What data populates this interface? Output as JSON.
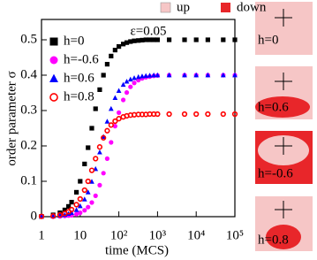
{
  "chart_data": {
    "type": "scatter",
    "xlabel": "time (MCS)",
    "ylabel": "order parameter σ",
    "annotation": "ε=0.05",
    "log_x": true,
    "xlim": [
      1,
      100000
    ],
    "ylim": [
      0,
      0.55
    ],
    "xticks": [
      1,
      10,
      {
        "value": 100,
        "label": "10²"
      },
      {
        "value": 1000,
        "label": "10³"
      },
      {
        "value": 10000,
        "label": "10⁴"
      },
      {
        "value": 100000,
        "label": "10⁵"
      }
    ],
    "yticks": [
      0,
      0.1,
      0.2,
      0.3,
      0.4,
      0.5
    ],
    "x": [
      1,
      2,
      3,
      4,
      5,
      6,
      8,
      10,
      13,
      16,
      20,
      25,
      32,
      40,
      50,
      63,
      80,
      100,
      130,
      160,
      200,
      250,
      320,
      400,
      500,
      630,
      800,
      1000,
      2000,
      5000,
      10000,
      20000,
      50000,
      100000
    ],
    "series": [
      {
        "name": "h=0",
        "color": "#000000",
        "marker": "square",
        "values": [
          0.001,
          0.005,
          0.011,
          0.019,
          0.029,
          0.041,
          0.069,
          0.1,
          0.149,
          0.195,
          0.25,
          0.305,
          0.359,
          0.4,
          0.431,
          0.454,
          0.471,
          0.481,
          0.488,
          0.492,
          0.495,
          0.497,
          0.498,
          0.499,
          0.5,
          0.5,
          0.5,
          0.5,
          0.5,
          0.5,
          0.5,
          0.5,
          0.5,
          0.5
        ]
      },
      {
        "name": "h=-0.6",
        "color": "#ff00ff",
        "marker": "circle",
        "values": [
          0,
          0,
          0.001,
          0.002,
          0.003,
          0.004,
          0.007,
          0.011,
          0.018,
          0.027,
          0.04,
          0.059,
          0.089,
          0.123,
          0.164,
          0.21,
          0.256,
          0.294,
          0.33,
          0.351,
          0.367,
          0.378,
          0.386,
          0.391,
          0.394,
          0.396,
          0.398,
          0.399,
          0.4,
          0.4,
          0.4,
          0.4,
          0.4,
          0.4
        ]
      },
      {
        "name": "h=0.6",
        "color": "#0000ff",
        "marker": "triangle",
        "values": [
          0,
          0.001,
          0.003,
          0.005,
          0.008,
          0.011,
          0.019,
          0.03,
          0.049,
          0.069,
          0.099,
          0.135,
          0.182,
          0.226,
          0.269,
          0.305,
          0.336,
          0.356,
          0.373,
          0.382,
          0.388,
          0.392,
          0.395,
          0.397,
          0.398,
          0.399,
          0.4,
          0.4,
          0.4,
          0.4,
          0.4,
          0.4,
          0.4,
          0.4
        ]
      },
      {
        "name": "h=0.8",
        "color": "#ff0000",
        "marker": "open-circle",
        "values": [
          0.001,
          0.002,
          0.005,
          0.009,
          0.014,
          0.02,
          0.034,
          0.05,
          0.075,
          0.1,
          0.131,
          0.164,
          0.197,
          0.223,
          0.243,
          0.259,
          0.27,
          0.277,
          0.282,
          0.285,
          0.287,
          0.288,
          0.289,
          0.289,
          0.289,
          0.29,
          0.29,
          0.29,
          0.29,
          0.29,
          0.29,
          0.29,
          0.29,
          0.29
        ]
      }
    ]
  },
  "phase_legend": [
    {
      "name": "up",
      "color": "#f6c6c6"
    },
    {
      "name": "down",
      "color": "#e8262a"
    }
  ],
  "snapshots": [
    {
      "label": "h=0"
    },
    {
      "label": "h=0.6"
    },
    {
      "label": "h=-0.6"
    },
    {
      "label": "h=0.8"
    }
  ]
}
